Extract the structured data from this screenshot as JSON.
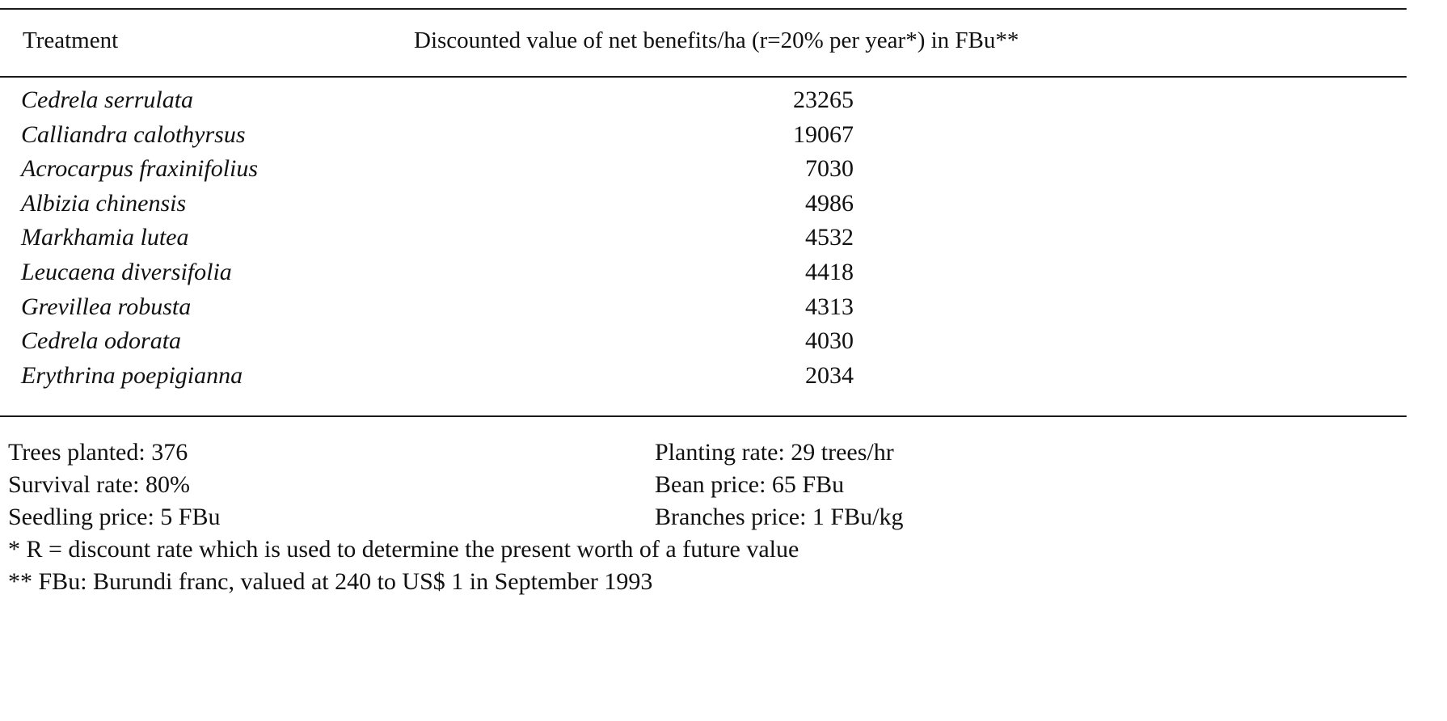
{
  "table": {
    "header": {
      "treatment": "Treatment",
      "value": "Discounted value of net benefits/ha (r=20% per year*) in FBu**"
    },
    "rows": [
      {
        "species": "Cedrela serrulata",
        "value": "23265"
      },
      {
        "species": "Calliandra calothyrsus",
        "value": "19067"
      },
      {
        "species": "Acrocarpus fraxinifolius",
        "value": "7030"
      },
      {
        "species": "Albizia chinensis",
        "value": "4986"
      },
      {
        "species": "Markhamia lutea",
        "value": "4532"
      },
      {
        "species": "Leucaena diversifolia",
        "value": "4418"
      },
      {
        "species": "Grevillea robusta",
        "value": "4313"
      },
      {
        "species": "Cedrela odorata",
        "value": "4030"
      },
      {
        "species": "Erythrina poepigianna",
        "value": "2034"
      }
    ]
  },
  "assumptions": {
    "left": [
      "Trees planted: 376",
      "Survival rate: 80%",
      "Seedling price: 5 FBu"
    ],
    "right": [
      "Planting rate: 29 trees/hr",
      "Bean price: 65 FBu",
      "Branches price: 1 FBu/kg"
    ]
  },
  "footnotes": [
    "* R = discount rate which is used to determine the present worth of a future value",
    "** FBu: Burundi franc, valued at 240 to US$ 1 in September 1993"
  ]
}
